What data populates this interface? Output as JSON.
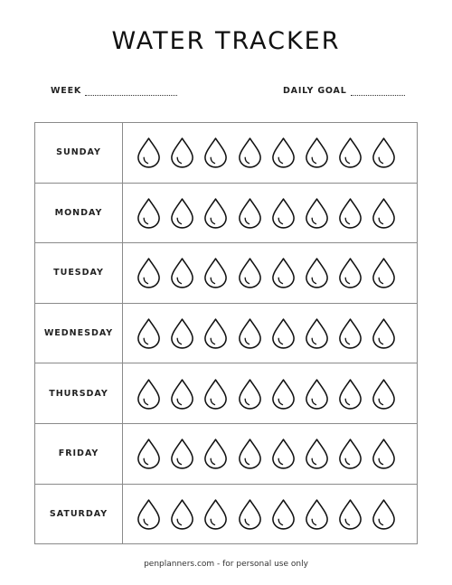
{
  "title": "WATER TRACKER",
  "week_label": "WEEK",
  "daily_goal_label": "DAILY GOAL",
  "days": [
    "SUNDAY",
    "MONDAY",
    "TUESDAY",
    "WEDNESDAY",
    "THURSDAY",
    "FRIDAY",
    "SATURDAY"
  ],
  "drops_per_day": 8,
  "drop_icon": "water-drop-icon",
  "footer": "penplanners.com - for personal use only"
}
